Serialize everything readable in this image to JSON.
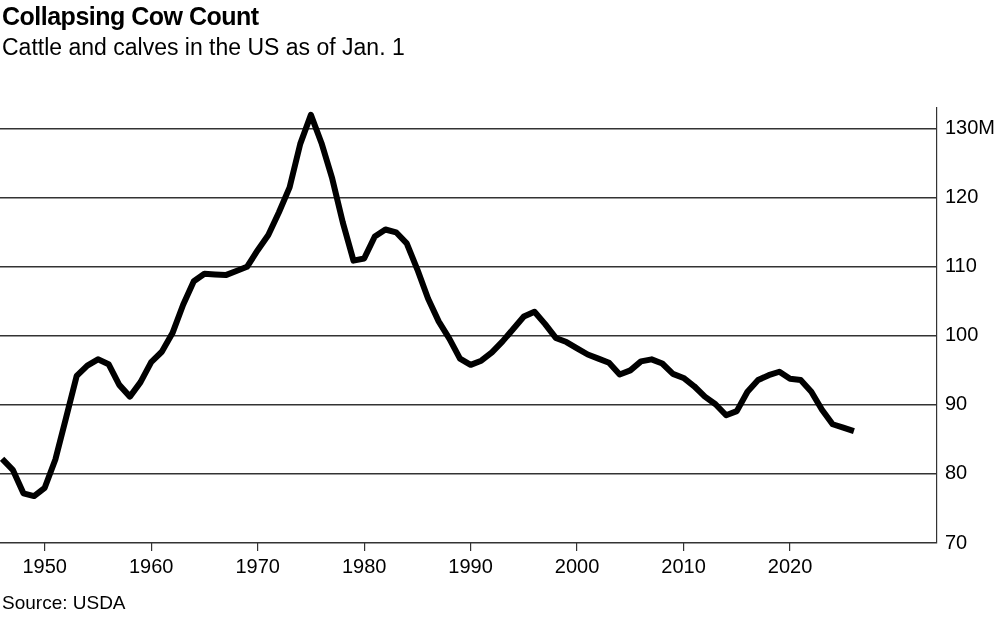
{
  "chart_data": {
    "type": "line",
    "title": "Collapsing Cow Count",
    "subtitle": "Cattle and calves in the US as of Jan. 1",
    "annotations": [
      "Source: USDA"
    ],
    "x": [
      1946,
      1947,
      1948,
      1949,
      1950,
      1951,
      1952,
      1953,
      1954,
      1955,
      1956,
      1957,
      1958,
      1959,
      1960,
      1961,
      1962,
      1963,
      1964,
      1965,
      1966,
      1967,
      1968,
      1969,
      1970,
      1971,
      1972,
      1973,
      1974,
      1975,
      1976,
      1977,
      1978,
      1979,
      1980,
      1981,
      1982,
      1983,
      1984,
      1985,
      1986,
      1987,
      1988,
      1989,
      1990,
      1991,
      1992,
      1993,
      1994,
      1995,
      1996,
      1997,
      1998,
      1999,
      2000,
      2001,
      2002,
      2003,
      2004,
      2005,
      2006,
      2007,
      2008,
      2009,
      2010,
      2011,
      2012,
      2013,
      2014,
      2015,
      2016,
      2017,
      2018,
      2019,
      2020,
      2021,
      2022,
      2023,
      2024,
      2025,
      2026
    ],
    "series": [
      {
        "color": "#000000",
        "values": [
          82.2,
          80.6,
          77.2,
          76.8,
          78.0,
          82.1,
          88.1,
          94.2,
          95.7,
          96.6,
          95.9,
          92.9,
          91.2,
          93.3,
          96.2,
          97.7,
          100.4,
          104.5,
          107.9,
          109.0,
          108.9,
          108.8,
          109.4,
          110.0,
          112.4,
          114.6,
          117.9,
          121.5,
          127.8,
          132.0,
          127.9,
          122.8,
          116.4,
          110.9,
          111.2,
          114.4,
          115.4,
          115.0,
          113.4,
          109.6,
          105.4,
          102.1,
          99.6,
          96.7,
          95.8,
          96.4,
          97.6,
          99.2,
          101.0,
          102.8,
          103.5,
          101.7,
          99.7,
          99.1,
          98.2,
          97.3,
          96.7,
          96.1,
          94.4,
          95.0,
          96.3,
          96.6,
          96.0,
          94.5,
          93.9,
          92.7,
          91.2,
          90.1,
          88.5,
          89.1,
          91.9,
          93.6,
          94.3,
          94.8,
          93.8,
          93.6,
          91.9,
          89.3,
          87.2,
          86.7,
          86.2
        ]
      }
    ],
    "xlim": [
      1945.8,
      2033.8
    ],
    "xticks": [
      1950,
      1960,
      1970,
      1980,
      1990,
      2000,
      2010,
      2020
    ],
    "ylim": [
      70,
      133
    ],
    "yticks": [
      70,
      80,
      90,
      100,
      110,
      120,
      {
        "value": 130,
        "label": "130M"
      }
    ],
    "grid": "y"
  }
}
